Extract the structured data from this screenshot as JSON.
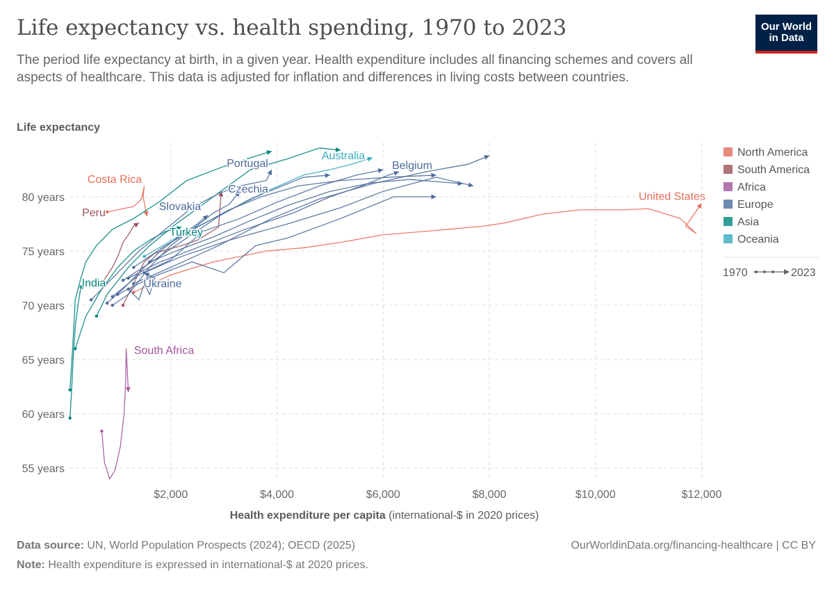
{
  "header": {
    "title": "Life expectancy vs. health spending, 1970 to 2023",
    "subtitle": "The period life expectancy at birth, in a given year. Health expenditure includes all financing schemes and covers all aspects of healthcare. This data is adjusted for inflation and differences in living costs between countries.",
    "logo": "Our World in Data"
  },
  "footer": {
    "source_label": "Data source:",
    "source": " UN, World Population Prospects (2024); OECD (2025)",
    "url": "OurWorldinData.org/financing-healthcare | CC BY",
    "note_label": "Note:",
    "note": " Health expenditure is expressed in international-$ at 2020 prices."
  },
  "chart_data": {
    "type": "scatter",
    "ylabel": "Life expectancy",
    "xlabel": "Health expenditure per capita",
    "xlabel_suffix": " (international-$ in 2020 prices)",
    "xlim": [
      0,
      12100
    ],
    "ylim": [
      53.5,
      85
    ],
    "xticks": [
      {
        "v": 2000,
        "label": "$2,000"
      },
      {
        "v": 4000,
        "label": "$4,000"
      },
      {
        "v": 6000,
        "label": "$6,000"
      },
      {
        "v": 8000,
        "label": "$8,000"
      },
      {
        "v": 10000,
        "label": "$10,000"
      },
      {
        "v": 12000,
        "label": "$12,000"
      }
    ],
    "yticks": [
      {
        "v": 55,
        "label": "55 years"
      },
      {
        "v": 60,
        "label": "60 years"
      },
      {
        "v": 65,
        "label": "65 years"
      },
      {
        "v": 70,
        "label": "70 years"
      },
      {
        "v": 75,
        "label": "75 years"
      },
      {
        "v": 80,
        "label": "80 years"
      }
    ],
    "grid": true,
    "legend_position": "right",
    "regions": [
      {
        "name": "North America",
        "color": "#e56e5a"
      },
      {
        "name": "South America",
        "color": "#9a5257"
      },
      {
        "name": "Africa",
        "color": "#a2559c"
      },
      {
        "name": "Europe",
        "color": "#4c6a9c"
      },
      {
        "name": "Asia",
        "color": "#00847e"
      },
      {
        "name": "Oceania",
        "color": "#38aaba"
      }
    ],
    "time_legend": {
      "start": "1970",
      "end": "2023"
    },
    "series": [
      {
        "name": "United States",
        "region": 0,
        "points": [
          [
            1300,
            71.2
          ],
          [
            2000,
            72.8
          ],
          [
            2800,
            74
          ],
          [
            3800,
            75
          ],
          [
            4500,
            75.3
          ],
          [
            5200,
            75.8
          ],
          [
            6000,
            76.5
          ],
          [
            7000,
            76.9
          ],
          [
            7900,
            77.3
          ],
          [
            8300,
            77.6
          ],
          [
            9000,
            78.4
          ],
          [
            9700,
            78.8
          ],
          [
            10500,
            78.8
          ],
          [
            11000,
            78.9
          ],
          [
            11600,
            78
          ],
          [
            11900,
            76.6
          ],
          [
            11700,
            77.3
          ],
          [
            12000,
            79.4
          ]
        ]
      },
      {
        "name": "Costa Rica",
        "region": 0,
        "points": [
          [
            800,
            78.6
          ],
          [
            1100,
            78.9
          ],
          [
            1300,
            79.1
          ],
          [
            1450,
            79.8
          ],
          [
            1500,
            81
          ],
          [
            1480,
            80
          ],
          [
            1550,
            78.2
          ]
        ]
      },
      {
        "name": "Peru",
        "region": 1,
        "points": [
          [
            700,
            72
          ],
          [
            900,
            73.5
          ],
          [
            1000,
            74.5
          ],
          [
            1100,
            75.8
          ],
          [
            1200,
            76.5
          ],
          [
            1300,
            77.3
          ],
          [
            1400,
            77.6
          ]
        ]
      },
      {
        "name": "",
        "region": 1,
        "points": [
          [
            1100,
            70
          ],
          [
            1300,
            72
          ],
          [
            1500,
            74
          ],
          [
            1700,
            74.8
          ],
          [
            2200,
            75.5
          ],
          [
            2500,
            76
          ],
          [
            2900,
            77.2
          ],
          [
            2950,
            80.5
          ]
        ]
      },
      {
        "name": "South Africa",
        "region": 2,
        "points": [
          [
            700,
            58.4
          ],
          [
            750,
            55.5
          ],
          [
            850,
            54
          ],
          [
            950,
            54.8
          ],
          [
            1050,
            57
          ],
          [
            1120,
            60
          ],
          [
            1150,
            63
          ],
          [
            1160,
            66
          ],
          [
            1180,
            64
          ],
          [
            1200,
            62
          ]
        ]
      },
      {
        "name": "India",
        "region": 4,
        "points": [
          [
            100,
            59.6
          ],
          [
            130,
            62
          ],
          [
            160,
            65
          ],
          [
            200,
            68
          ],
          [
            250,
            70
          ],
          [
            300,
            71.5
          ],
          [
            350,
            72
          ]
        ]
      },
      {
        "name": "",
        "region": 4,
        "points": [
          [
            100,
            62.2
          ],
          [
            150,
            66
          ],
          [
            200,
            70.5
          ],
          [
            300,
            72.4
          ],
          [
            400,
            74
          ],
          [
            600,
            75.5
          ],
          [
            900,
            77
          ],
          [
            1300,
            78
          ],
          [
            1800,
            79.6
          ],
          [
            2300,
            81.5
          ],
          [
            3000,
            82.8
          ],
          [
            3500,
            83.6
          ],
          [
            3900,
            84.2
          ]
        ]
      },
      {
        "name": "",
        "region": 4,
        "points": [
          [
            600,
            69
          ],
          [
            800,
            71
          ],
          [
            1200,
            73.5
          ],
          [
            1600,
            75.5
          ],
          [
            2100,
            77.5
          ],
          [
            2800,
            80
          ],
          [
            3500,
            82.5
          ],
          [
            4200,
            83.5
          ],
          [
            4800,
            84.5
          ],
          [
            5200,
            84.3
          ]
        ]
      },
      {
        "name": "Turkey",
        "region": 4,
        "points": [
          [
            200,
            66
          ],
          [
            400,
            69
          ],
          [
            700,
            71.5
          ],
          [
            1000,
            73.5
          ],
          [
            1300,
            75
          ],
          [
            1600,
            76
          ],
          [
            1900,
            76.8
          ],
          [
            2200,
            77.2
          ]
        ]
      },
      {
        "name": "Australia",
        "region": 5,
        "points": [
          [
            1500,
            74.5
          ],
          [
            2200,
            76.5
          ],
          [
            3000,
            78.5
          ],
          [
            3800,
            80.5
          ],
          [
            4500,
            82
          ],
          [
            5000,
            82.5
          ],
          [
            5400,
            83
          ],
          [
            5800,
            83.6
          ]
        ]
      },
      {
        "name": "Portugal",
        "region": 3,
        "points": [
          [
            500,
            70.5
          ],
          [
            900,
            72.5
          ],
          [
            1400,
            75
          ],
          [
            1900,
            77
          ],
          [
            2400,
            79
          ],
          [
            2900,
            80.3
          ],
          [
            3300,
            81
          ],
          [
            3800,
            81.5
          ],
          [
            3900,
            82.5
          ]
        ]
      },
      {
        "name": "Czechia",
        "region": 3,
        "points": [
          [
            900,
            70
          ],
          [
            1200,
            71
          ],
          [
            1600,
            73.5
          ],
          [
            2000,
            75.5
          ],
          [
            2400,
            77
          ],
          [
            2800,
            78.5
          ],
          [
            3100,
            79.3
          ],
          [
            3300,
            80.5
          ]
        ]
      },
      {
        "name": "Slovakia",
        "region": 3,
        "points": [
          [
            800,
            70.2
          ],
          [
            1100,
            71.5
          ],
          [
            1500,
            73.5
          ],
          [
            1800,
            75
          ],
          [
            2200,
            76.5
          ],
          [
            2500,
            77.5
          ],
          [
            2700,
            78.3
          ]
        ]
      },
      {
        "name": "Ukraine",
        "region": 3,
        "points": [
          [
            1200,
            71.5
          ],
          [
            1400,
            70.5
          ],
          [
            1500,
            72
          ],
          [
            1600,
            71
          ],
          [
            1700,
            72.5
          ],
          [
            1500,
            73
          ]
        ]
      },
      {
        "name": "Belgium",
        "region": 3,
        "points": [
          [
            1200,
            72.5
          ],
          [
            1800,
            74
          ],
          [
            2600,
            75.5
          ],
          [
            3400,
            77
          ],
          [
            4300,
            78.5
          ],
          [
            5000,
            80
          ],
          [
            5600,
            81
          ],
          [
            6100,
            82
          ],
          [
            6300,
            82.3
          ]
        ]
      },
      {
        "name": "",
        "region": 3,
        "points": [
          [
            1500,
            73
          ],
          [
            2200,
            74.5
          ],
          [
            3100,
            76
          ],
          [
            4200,
            77.5
          ],
          [
            5200,
            79
          ],
          [
            6000,
            80.5
          ],
          [
            7000,
            81.8
          ],
          [
            7700,
            81
          ]
        ]
      },
      {
        "name": "",
        "region": 3,
        "points": [
          [
            1300,
            72
          ],
          [
            2000,
            73.5
          ],
          [
            2900,
            75.5
          ],
          [
            3900,
            78
          ],
          [
            4800,
            79.8
          ],
          [
            5800,
            81.2
          ],
          [
            6800,
            82.3
          ],
          [
            7600,
            83
          ],
          [
            8000,
            83.8
          ]
        ]
      },
      {
        "name": "",
        "region": 3,
        "points": [
          [
            1000,
            71
          ],
          [
            1600,
            72.5
          ],
          [
            2400,
            74
          ],
          [
            3000,
            73
          ],
          [
            3600,
            75.5
          ],
          [
            4200,
            76.2
          ],
          [
            5200,
            78
          ],
          [
            6200,
            80
          ],
          [
            7000,
            80
          ]
        ]
      },
      {
        "name": "",
        "region": 3,
        "points": [
          [
            900,
            70.8
          ],
          [
            1400,
            72.8
          ],
          [
            2000,
            74.2
          ],
          [
            2600,
            76.8
          ],
          [
            3300,
            78
          ],
          [
            4000,
            79.5
          ],
          [
            4800,
            81
          ],
          [
            5500,
            82
          ],
          [
            6000,
            82.5
          ]
        ]
      },
      {
        "name": "",
        "region": 3,
        "points": [
          [
            1300,
            73.5
          ],
          [
            1900,
            75.5
          ],
          [
            2500,
            77.2
          ],
          [
            3100,
            78.8
          ],
          [
            3700,
            80
          ],
          [
            4400,
            81
          ],
          [
            5200,
            81.5
          ],
          [
            6100,
            81.8
          ],
          [
            7000,
            82
          ]
        ]
      },
      {
        "name": "",
        "region": 3,
        "points": [
          [
            1100,
            72.3
          ],
          [
            1700,
            74.2
          ],
          [
            2300,
            76.2
          ],
          [
            2900,
            78.2
          ],
          [
            3500,
            79.8
          ],
          [
            4000,
            80.8
          ],
          [
            4500,
            81.8
          ],
          [
            5000,
            82
          ]
        ]
      },
      {
        "name": "",
        "region": 3,
        "points": [
          [
            1600,
            74
          ],
          [
            2200,
            75.2
          ],
          [
            2800,
            76.3
          ],
          [
            3500,
            77.8
          ],
          [
            4200,
            79.2
          ],
          [
            5000,
            80.5
          ],
          [
            5800,
            81.3
          ],
          [
            6500,
            81.6
          ],
          [
            7500,
            81.2
          ]
        ]
      }
    ]
  }
}
